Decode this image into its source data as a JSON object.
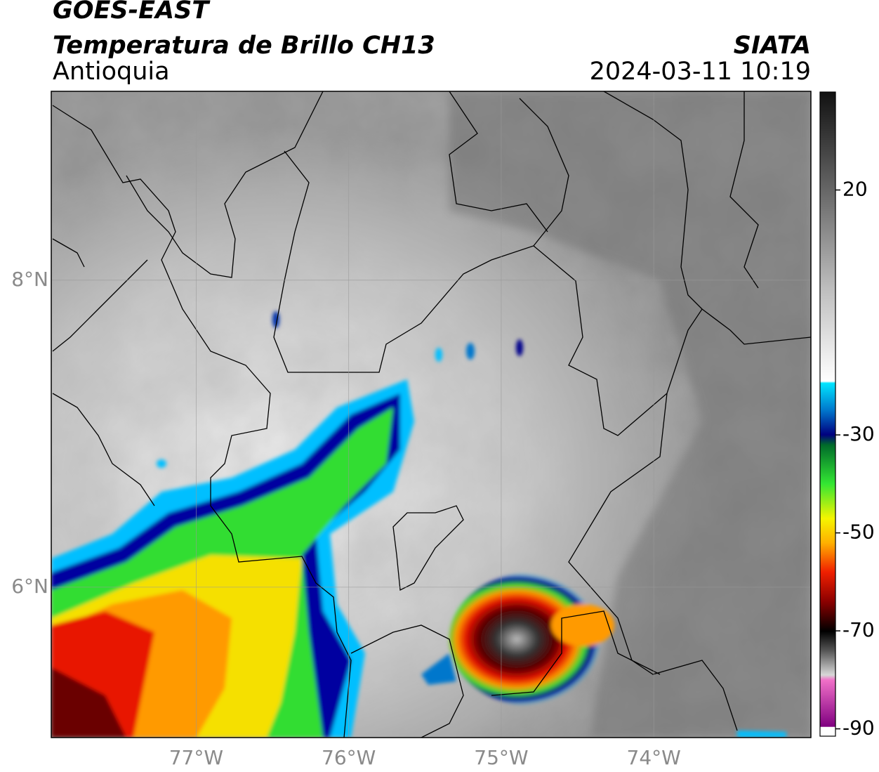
{
  "header": {
    "title": "GOES-EAST",
    "subtitle": "Temperatura de Brillo CH13",
    "region": "Antioquia",
    "source": "SIATA",
    "datetime": "2024-03-11 10:19"
  },
  "map": {
    "xlim": [
      -77.95,
      -72.97
    ],
    "ylim": [
      5.02,
      9.23
    ],
    "xticks": [
      {
        "value": -77,
        "label": "77°W"
      },
      {
        "value": -76,
        "label": "76°W"
      },
      {
        "value": -75,
        "label": "75°W"
      },
      {
        "value": -74,
        "label": "74°W"
      }
    ],
    "yticks": [
      {
        "value": 8,
        "label": "8°N"
      },
      {
        "value": 6,
        "label": "6°N"
      }
    ],
    "grid": true
  },
  "colorbar": {
    "clim": [
      -91.5,
      40
    ],
    "ticks": [
      20,
      -30,
      -50,
      -70,
      -90
    ]
  }
}
